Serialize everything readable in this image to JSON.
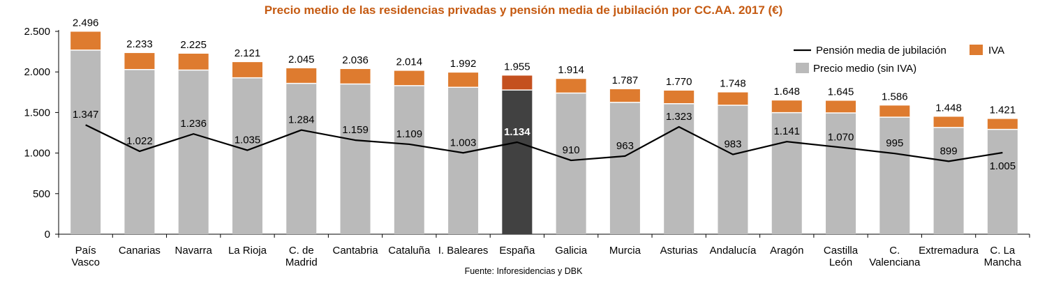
{
  "chart_data": {
    "type": "bar",
    "title": "Precio medio de las residencias privadas y pensión media de jubilación por CC.AA. 2017 (€)",
    "source": "Fuente: Inforesidencias y DBK",
    "categories": [
      [
        "País",
        "Vasco"
      ],
      [
        "Canarias"
      ],
      [
        "Navarra"
      ],
      [
        "La Rioja"
      ],
      [
        "C. de",
        "Madrid"
      ],
      [
        "Cantabria"
      ],
      [
        "Cataluña"
      ],
      [
        "I. Baleares"
      ],
      [
        "España"
      ],
      [
        "Galicia"
      ],
      [
        "Murcia"
      ],
      [
        "Asturias"
      ],
      [
        "Andalucía"
      ],
      [
        "Aragón"
      ],
      [
        "Castilla",
        "León"
      ],
      [
        "C.",
        "Valenciana"
      ],
      [
        "Extremadura"
      ],
      [
        "C. La",
        "Mancha"
      ]
    ],
    "ylim": [
      0,
      2500
    ],
    "yticks": [
      0,
      500,
      1000,
      1500,
      2000,
      2500
    ],
    "ytick_labels": [
      "0",
      "500",
      "1.000",
      "1.500",
      "2.000",
      "2.500"
    ],
    "highlight_index": 8,
    "totals": [
      2496,
      2233,
      2225,
      2121,
      2045,
      2036,
      2014,
      1992,
      1955,
      1914,
      1787,
      1770,
      1748,
      1648,
      1645,
      1586,
      1448,
      1421
    ],
    "total_labels": [
      "2.496",
      "2.233",
      "2.225",
      "2.121",
      "2.045",
      "2.036",
      "2.014",
      "1.992",
      "1.955",
      "1.914",
      "1.787",
      "1.770",
      "1.748",
      "1.648",
      "1.645",
      "1.586",
      "1.448",
      "1.421"
    ],
    "series": [
      {
        "name": "Precio medio (sin IVA)",
        "type": "bar",
        "values": [
          2269,
          2030,
          2023,
          1928,
          1859,
          1851,
          1831,
          1811,
          1777,
          1740,
          1625,
          1609,
          1589,
          1498,
          1495,
          1442,
          1316,
          1292
        ]
      },
      {
        "name": "IVA",
        "type": "bar",
        "values": [
          227,
          203,
          202,
          193,
          186,
          185,
          183,
          181,
          178,
          174,
          162,
          161,
          159,
          150,
          150,
          144,
          132,
          129
        ]
      },
      {
        "name": "Pensión media de jubilación",
        "type": "line",
        "values": [
          1347,
          1022,
          1236,
          1035,
          1284,
          1159,
          1109,
          1003,
          1134,
          910,
          963,
          1323,
          983,
          1141,
          1070,
          995,
          899,
          1005
        ],
        "labels": [
          "1.347",
          "1.022",
          "1.236",
          "1.035",
          "1.284",
          "1.159",
          "1.109",
          "1.003",
          "1.134",
          "910",
          "963",
          "1.323",
          "983",
          "1.141",
          "1.070",
          "995",
          "899",
          "1.005"
        ]
      }
    ],
    "legend_position": "top-right",
    "grid": false
  },
  "colors": {
    "title": "#C55A11",
    "base_bar": "#BABABA",
    "iva_bar": "#DE7B2F",
    "highlight_base": "#414141",
    "highlight_iva": "#C4501F",
    "line": "#000000"
  }
}
